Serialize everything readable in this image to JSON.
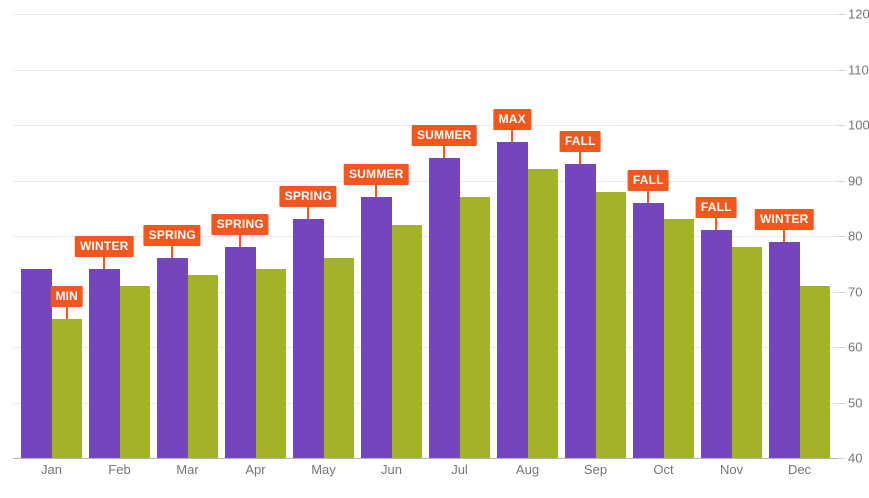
{
  "chart_data": {
    "type": "bar",
    "title": "",
    "categories": [
      "Jan",
      "Feb",
      "Mar",
      "Apr",
      "May",
      "Jun",
      "Jul",
      "Aug",
      "Sep",
      "Oct",
      "Nov",
      "Dec"
    ],
    "series": [
      {
        "name": "series-1-purple",
        "color": "#7446BC",
        "values": [
          74,
          74,
          76,
          78,
          83,
          87,
          94,
          97,
          93,
          86,
          81,
          79
        ]
      },
      {
        "name": "series-2-green",
        "color": "#A2B32B",
        "values": [
          65,
          71,
          73,
          74,
          76,
          82,
          87,
          92,
          88,
          83,
          78,
          71
        ]
      }
    ],
    "annotations": [
      {
        "category": "Jan",
        "series": 1,
        "label": "MIN"
      },
      {
        "category": "Feb",
        "series": 0,
        "label": "WINTER"
      },
      {
        "category": "Mar",
        "series": 0,
        "label": "SPRING"
      },
      {
        "category": "Apr",
        "series": 0,
        "label": "SPRING"
      },
      {
        "category": "May",
        "series": 0,
        "label": "SPRING"
      },
      {
        "category": "Jun",
        "series": 0,
        "label": "SUMMER"
      },
      {
        "category": "Jul",
        "series": 0,
        "label": "SUMMER"
      },
      {
        "category": "Aug",
        "series": 0,
        "label": "MAX"
      },
      {
        "category": "Sep",
        "series": 0,
        "label": "FALL"
      },
      {
        "category": "Oct",
        "series": 0,
        "label": "FALL"
      },
      {
        "category": "Nov",
        "series": 0,
        "label": "FALL"
      },
      {
        "category": "Dec",
        "series": 0,
        "label": "WINTER"
      }
    ],
    "annotation_style": {
      "background": "#F4571E",
      "connector": "#F2572A",
      "text_color": "#FFFFFF"
    },
    "ylim": [
      40,
      120
    ],
    "y_ticks": [
      40,
      50,
      60,
      70,
      80,
      90,
      100,
      110,
      120
    ],
    "y_axis_position": "right",
    "xlabel": "",
    "ylabel": "",
    "grid": true,
    "legend": "none",
    "axis_text_color": "#767676",
    "gridline_color": "#EBEBEB",
    "axis_line_color": "#B3B3B3"
  }
}
